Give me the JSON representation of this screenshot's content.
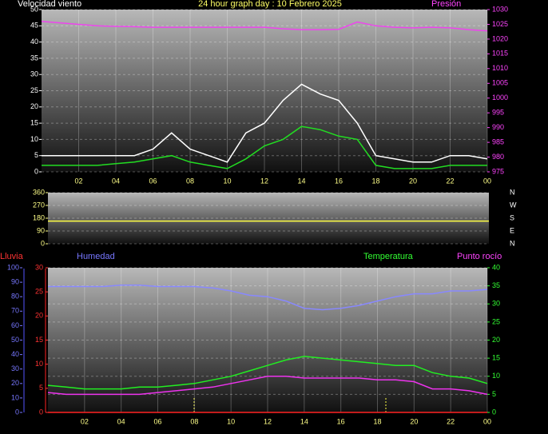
{
  "chart_data": [
    {
      "type": "line",
      "title": "24 hour graph day : 10 Febrero 2025",
      "ylabel": "Velocidad viento",
      "y2label": "Presión",
      "x": [
        0,
        1,
        2,
        3,
        4,
        5,
        6,
        7,
        8,
        9,
        10,
        11,
        12,
        13,
        14,
        15,
        16,
        17,
        18,
        19,
        20,
        21,
        22,
        23,
        24
      ],
      "xlim": [
        0,
        24
      ],
      "xticks": [
        {
          "value": 2,
          "label": "02"
        },
        {
          "value": 4,
          "label": "04"
        },
        {
          "value": 6,
          "label": "06"
        },
        {
          "value": 8,
          "label": "08"
        },
        10,
        12,
        14,
        16,
        18,
        20,
        22,
        {
          "value": 24,
          "label": "00"
        }
      ],
      "ylim": [
        0,
        50
      ],
      "yticks": [
        0,
        5,
        10,
        15,
        20,
        25,
        30,
        35,
        40,
        45,
        50
      ],
      "ytick_color": "#ffffff",
      "y2lim": [
        975,
        1030
      ],
      "y2ticks": [
        975,
        980,
        985,
        990,
        995,
        1000,
        1005,
        1010,
        1015,
        1020,
        1025,
        1030
      ],
      "y2tick_color": "#ff44ff",
      "grid": true,
      "series": [
        {
          "color": "#ffffff",
          "values": [
            5,
            5,
            5,
            5,
            5,
            5,
            7,
            12,
            7,
            5,
            3,
            12,
            15,
            22,
            27,
            24,
            22,
            15,
            5,
            4,
            3,
            3,
            5,
            5,
            4
          ]
        },
        {
          "color": "#22dd22",
          "values": [
            2,
            2,
            2,
            2,
            2.5,
            3,
            4,
            5,
            3,
            2,
            1,
            4,
            8,
            10,
            14,
            13,
            11,
            10,
            2,
            1,
            1,
            1,
            2,
            2,
            2
          ]
        },
        {
          "color": "#ee44ee",
          "axis": "y2",
          "values": [
            1026,
            1025.5,
            1025,
            1024.5,
            1024.3,
            1024.2,
            1024,
            1024,
            1024,
            1024,
            1024,
            1024,
            1024,
            1023.5,
            1023.2,
            1023.2,
            1023.3,
            1025.8,
            1024.5,
            1024,
            1023.8,
            1024,
            1023.8,
            1023.2,
            1022.8
          ]
        }
      ]
    },
    {
      "type": "line",
      "x": [
        0,
        24
      ],
      "xlim": [
        0,
        24
      ],
      "ylim": [
        0,
        360
      ],
      "yticks": [
        0,
        90,
        180,
        270,
        360
      ],
      "ytick_color": "#ffff88",
      "y2lim": [
        0,
        360
      ],
      "y2ticks": [
        {
          "value": 360,
          "label": "N"
        },
        {
          "value": 270,
          "label": "W"
        },
        {
          "value": 180,
          "label": "S"
        },
        {
          "value": 90,
          "label": "E"
        },
        {
          "value": 0,
          "label": "N"
        }
      ],
      "y2tick_color": "#ffffff",
      "grid": true,
      "series": [
        {
          "color": "#ffff44",
          "values": [
            160,
            160
          ]
        }
      ]
    },
    {
      "type": "line",
      "x": [
        0,
        1,
        2,
        3,
        4,
        5,
        6,
        7,
        8,
        9,
        10,
        11,
        12,
        13,
        14,
        15,
        16,
        17,
        18,
        19,
        20,
        21,
        22,
        23,
        24
      ],
      "xlim": [
        0,
        24
      ],
      "xticks": [
        {
          "value": 2,
          "label": "02"
        },
        {
          "value": 4,
          "label": "04"
        },
        {
          "value": 6,
          "label": "06"
        },
        {
          "value": 8,
          "label": "08"
        },
        10,
        12,
        14,
        16,
        18,
        20,
        22,
        {
          "value": 24,
          "label": "00"
        }
      ],
      "rain_label": "Lluvia",
      "ylabel": "Humedad",
      "y2label": "Temperatura",
      "y2label_b": "Punto rocío",
      "ylim": [
        0,
        100
      ],
      "yticks": [
        0,
        10,
        20,
        30,
        40,
        50,
        60,
        70,
        80,
        90,
        100
      ],
      "ytick_color": "#7777ff",
      "rain_ylim": [
        0,
        30
      ],
      "rain_yticks": [
        0,
        5,
        10,
        15,
        20,
        25,
        30
      ],
      "rain_ytick_color": "#ff3333",
      "y2lim": [
        0,
        40
      ],
      "y2ticks": [
        0,
        5,
        10,
        15,
        20,
        25,
        30,
        35,
        40
      ],
      "y2tick_color": "#33ff33",
      "grid": true,
      "series": [
        {
          "name": "Humedad",
          "color": "#8888ff",
          "values": [
            87,
            87,
            87,
            87,
            88,
            88,
            87,
            87,
            87,
            86,
            84,
            81,
            80,
            77,
            72,
            71,
            72,
            74,
            77,
            80,
            82,
            82,
            84,
            84,
            85
          ]
        },
        {
          "name": "Lluvia",
          "color": "#ff2222",
          "axis": "rain",
          "values": [
            0,
            0,
            0,
            0,
            0,
            0,
            0,
            0,
            0,
            0,
            0,
            0,
            0,
            0,
            0,
            0,
            0,
            0,
            0,
            0,
            0,
            0,
            0,
            0,
            0
          ]
        },
        {
          "name": "Temperatura",
          "color": "#22ee22",
          "axis": "y2",
          "values": [
            7.5,
            7,
            6.5,
            6.5,
            6.5,
            7,
            7,
            7.5,
            8,
            9,
            10,
            11.5,
            13,
            14.5,
            15.5,
            15,
            14.5,
            14,
            13.5,
            13,
            13,
            11,
            10,
            9.5,
            8
          ]
        },
        {
          "name": "Punto rocío",
          "color": "#ee33ee",
          "axis": "y2",
          "values": [
            5.5,
            5,
            5,
            5,
            5,
            5,
            5.5,
            6,
            6.5,
            7,
            8,
            9,
            10,
            10,
            9.5,
            9.5,
            9.5,
            9.5,
            9,
            9,
            8.5,
            6.5,
            6.5,
            6,
            5
          ]
        }
      ]
    }
  ]
}
